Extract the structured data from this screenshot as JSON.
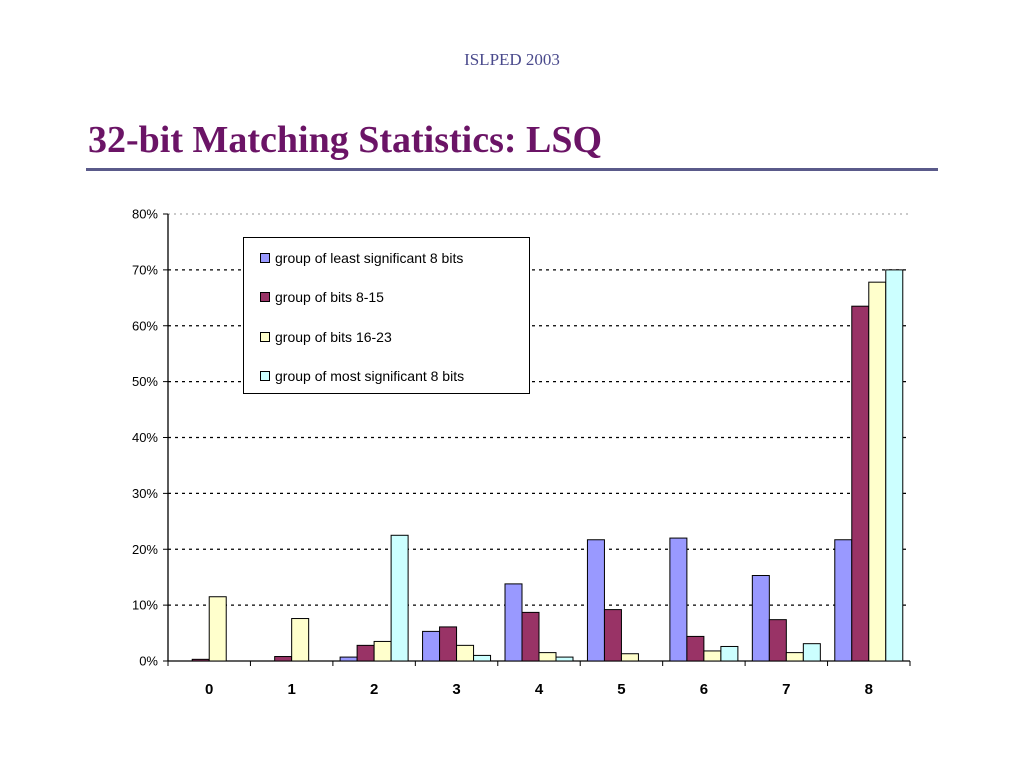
{
  "header": {
    "tag": "ISLPED 2003"
  },
  "slide": {
    "title": "32-bit Matching Statistics: LSQ"
  },
  "chart_data": {
    "type": "bar",
    "categories": [
      "0",
      "1",
      "2",
      "3",
      "4",
      "5",
      "6",
      "7",
      "8"
    ],
    "ylim": [
      0,
      80
    ],
    "yticks": [
      "0%",
      "10%",
      "20%",
      "30%",
      "40%",
      "50%",
      "60%",
      "70%",
      "80%"
    ],
    "grid": true,
    "legend_position": "top-left",
    "series": [
      {
        "name": "group of least significant 8 bits",
        "color": "#9999ff",
        "values": [
          0,
          0,
          0.7,
          5.3,
          13.8,
          21.7,
          22.0,
          15.3,
          21.7
        ]
      },
      {
        "name": "group of bits 8-15",
        "color": "#993366",
        "values": [
          0.3,
          0.8,
          2.8,
          6.1,
          8.7,
          9.2,
          4.4,
          7.4,
          63.5
        ]
      },
      {
        "name": "group of bits 16-23",
        "color": "#ffffcc",
        "values": [
          11.5,
          7.6,
          3.5,
          2.8,
          1.5,
          1.3,
          1.8,
          1.5,
          67.8
        ]
      },
      {
        "name": "group of most significant 8 bits",
        "color": "#ccffff",
        "values": [
          0,
          0,
          22.5,
          1.0,
          0.7,
          0,
          2.6,
          3.1,
          70.0
        ]
      }
    ]
  }
}
